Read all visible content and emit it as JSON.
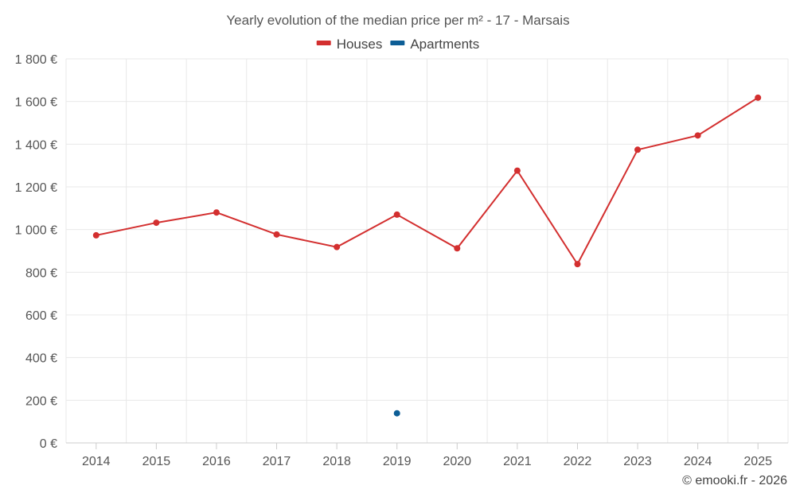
{
  "chart_data": {
    "type": "line",
    "title": "Yearly evolution of the median price per m² - 17 - Marsais",
    "categories": [
      "2014",
      "2015",
      "2016",
      "2017",
      "2018",
      "2019",
      "2020",
      "2021",
      "2022",
      "2023",
      "2024",
      "2025"
    ],
    "series": [
      {
        "name": "Houses",
        "color": "#d32f2f",
        "values": [
          973,
          1032,
          1080,
          977,
          918,
          1070,
          912,
          1276,
          838,
          1374,
          1441,
          1618
        ]
      },
      {
        "name": "Apartments",
        "color": "#0d5e96",
        "values": [
          null,
          null,
          null,
          null,
          null,
          139,
          null,
          null,
          null,
          null,
          null,
          null
        ]
      }
    ],
    "y_ticks": [
      0,
      200,
      400,
      600,
      800,
      1000,
      1200,
      1400,
      1600,
      1800
    ],
    "y_tick_labels": [
      "0 €",
      "200 €",
      "400 €",
      "600 €",
      "800 €",
      "1 000 €",
      "1 200 €",
      "1 400 €",
      "1 600 €",
      "1 800 €"
    ],
    "ylim": [
      0,
      1800
    ],
    "xlabel": "",
    "ylabel": "",
    "grid": true,
    "legend_position": "top-center"
  },
  "credit": "© emooki.fr - 2026"
}
